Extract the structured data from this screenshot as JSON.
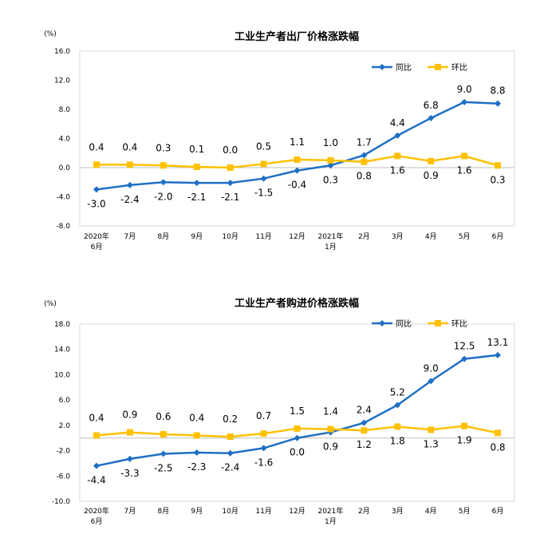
{
  "chart_data": [
    {
      "type": "line",
      "title": "工业生产者出厂价格涨跌幅",
      "ylabel": "(%)",
      "ylim": [
        -8.0,
        16.0
      ],
      "yticks": [
        "16.0",
        "12.0",
        "8.0",
        "4.0",
        "0.0",
        "-4.0",
        "-8.0"
      ],
      "grid": false,
      "legend": "top-right",
      "categories": [
        [
          "2020年",
          "6月"
        ],
        [
          "7月"
        ],
        [
          "8月"
        ],
        [
          "9月"
        ],
        [
          "10月"
        ],
        [
          "11月"
        ],
        [
          "12月"
        ],
        [
          "2021年",
          "1月"
        ],
        [
          "2月"
        ],
        [
          "3月"
        ],
        [
          "4月"
        ],
        [
          "5月"
        ],
        [
          "6月"
        ]
      ],
      "series": [
        {
          "name": "同比",
          "color": "#1f6fc5",
          "marker": "diamond",
          "values": [
            -3.0,
            -2.4,
            -2.0,
            -2.1,
            -2.1,
            -1.5,
            -0.4,
            0.3,
            1.7,
            4.4,
            6.8,
            9.0,
            8.8
          ],
          "labels": [
            "-3.0",
            "-2.4",
            "-2.0",
            "-2.1",
            "-2.1",
            "-1.5",
            "-0.4",
            "0.3",
            "1.7",
            "4.4",
            "6.8",
            "9.0",
            "8.8"
          ]
        },
        {
          "name": "环比",
          "color": "#ffc000",
          "marker": "square",
          "values": [
            0.4,
            0.4,
            0.3,
            0.1,
            0.0,
            0.5,
            1.1,
            1.0,
            0.8,
            1.6,
            0.9,
            1.6,
            0.3
          ],
          "labels": [
            "0.4",
            "0.4",
            "0.3",
            "0.1",
            "0.0",
            "0.5",
            "1.1",
            "1.0",
            "0.8",
            "1.6",
            "0.9",
            "1.6",
            "0.3"
          ]
        }
      ]
    },
    {
      "type": "line",
      "title": "工业生产者购进价格涨跌幅",
      "ylabel": "(%)",
      "ylim": [
        -10.0,
        18.0
      ],
      "yticks": [
        "18.0",
        "14.0",
        "10.0",
        "6.0",
        "2.0",
        "-2.0",
        "-6.0",
        "-10.0"
      ],
      "grid": false,
      "legend": "top-right",
      "categories": [
        [
          "2020年",
          "6月"
        ],
        [
          "7月"
        ],
        [
          "8月"
        ],
        [
          "9月"
        ],
        [
          "10月"
        ],
        [
          "11月"
        ],
        [
          "12月"
        ],
        [
          "2021年",
          "1月"
        ],
        [
          "2月"
        ],
        [
          "3月"
        ],
        [
          "4月"
        ],
        [
          "5月"
        ],
        [
          "6月"
        ]
      ],
      "series": [
        {
          "name": "同比",
          "color": "#1f6fc5",
          "marker": "diamond",
          "values": [
            -4.4,
            -3.3,
            -2.5,
            -2.3,
            -2.4,
            -1.6,
            0.0,
            0.9,
            2.4,
            5.2,
            9.0,
            12.5,
            13.1
          ],
          "labels": [
            "-4.4",
            "-3.3",
            "-2.5",
            "-2.3",
            "-2.4",
            "-1.6",
            "0.0",
            "0.9",
            "2.4",
            "5.2",
            "9.0",
            "12.5",
            "13.1"
          ]
        },
        {
          "name": "环比",
          "color": "#ffc000",
          "marker": "square",
          "values": [
            0.4,
            0.9,
            0.6,
            0.4,
            0.2,
            0.7,
            1.5,
            1.4,
            1.2,
            1.8,
            1.3,
            1.9,
            0.8
          ],
          "labels": [
            "0.4",
            "0.9",
            "0.6",
            "0.4",
            "0.2",
            "0.7",
            "1.5",
            "1.4",
            "1.2",
            "1.8",
            "1.3",
            "1.9",
            "0.8"
          ]
        }
      ]
    }
  ]
}
